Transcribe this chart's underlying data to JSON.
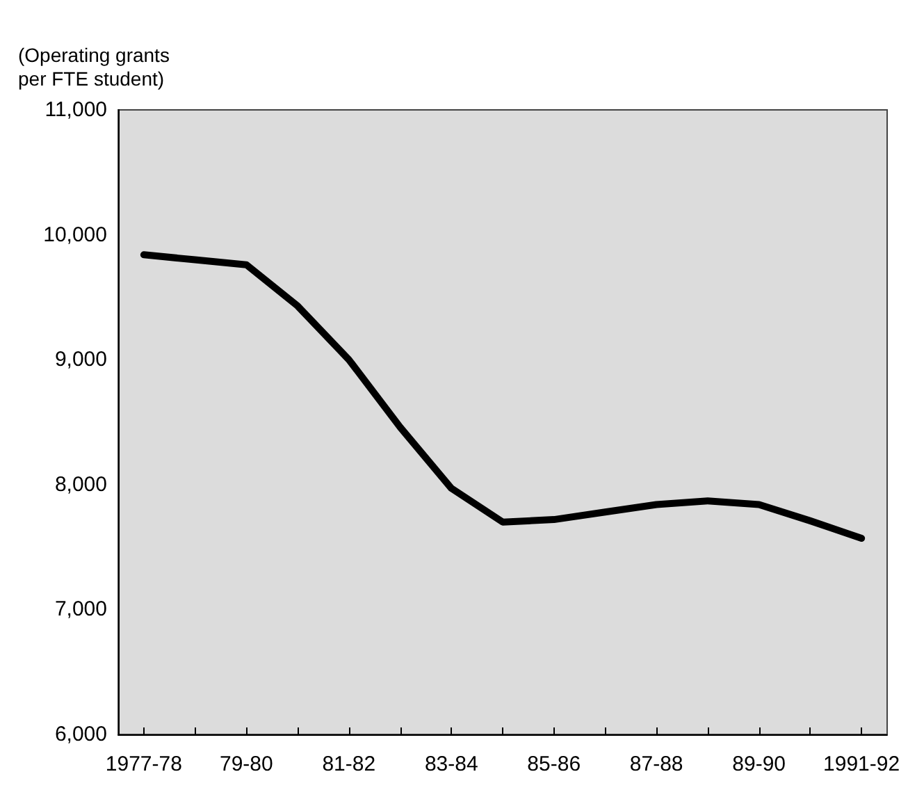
{
  "chart_data": {
    "type": "line",
    "ylabel": "(Operating grants\nper FTE student)",
    "categories": [
      "1977-78",
      null,
      "79-80",
      null,
      "81-82",
      null,
      "83-84",
      null,
      "85-86",
      null,
      "87-88",
      null,
      "89-90",
      null,
      "1991-92"
    ],
    "series": [
      {
        "color": "#000000",
        "values": [
          9840,
          9800,
          9760,
          9430,
          9000,
          8460,
          7970,
          7700,
          7720,
          7780,
          7840,
          7870,
          7840,
          7710,
          7570
        ]
      }
    ],
    "ylim": [
      6000,
      11000
    ],
    "yticks": [
      {
        "value": 6000,
        "label": "6,000"
      },
      {
        "value": 7000,
        "label": "7,000"
      },
      {
        "value": 8000,
        "label": "8,000"
      },
      {
        "value": 9000,
        "label": "9,000"
      },
      {
        "value": 10000,
        "label": "10,000"
      },
      {
        "value": 11000,
        "label": "11,000"
      }
    ],
    "marker": "none",
    "line_style": "solid"
  }
}
